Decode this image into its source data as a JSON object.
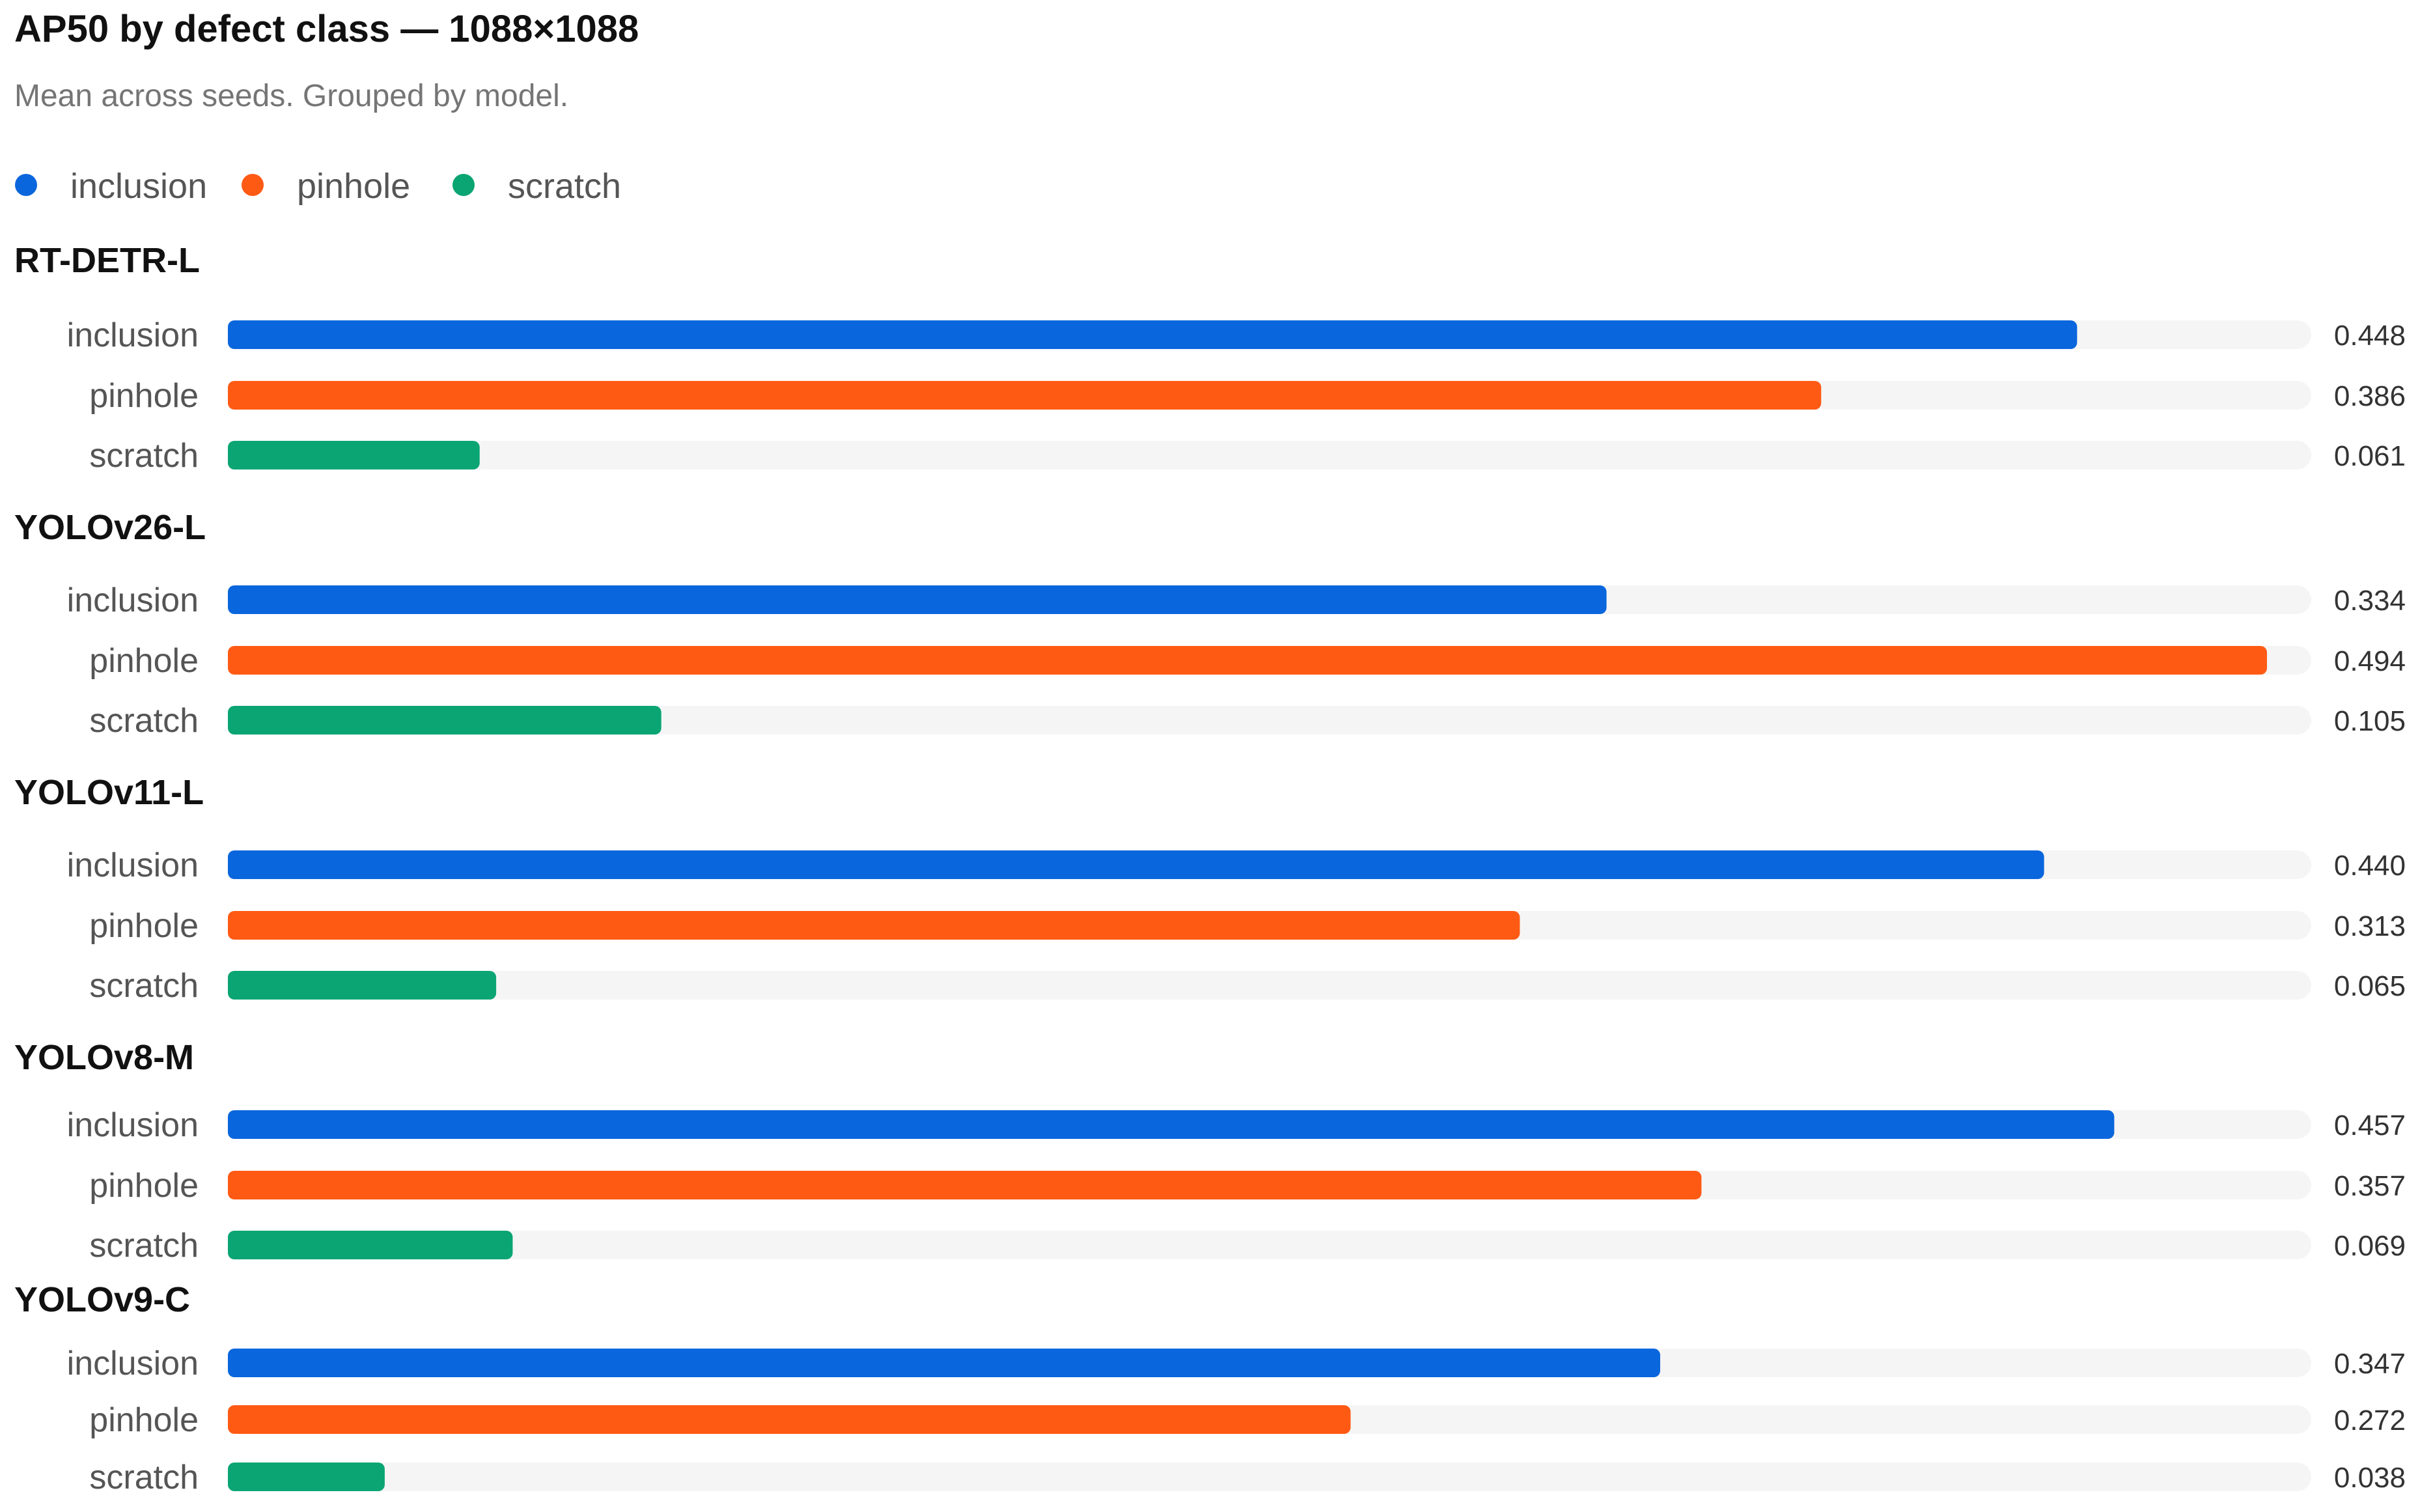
{
  "chart_data": {
    "type": "bar",
    "orientation": "horizontal",
    "title": "AP50 by defect class — 1088×1088",
    "subtitle": "Mean across seeds. Grouped by model.",
    "xlim": [
      0,
      0.5
    ],
    "grid": false,
    "legend_position": "top-left",
    "categories": [
      "inclusion",
      "pinhole",
      "scratch"
    ],
    "colors": {
      "inclusion": "#0a66dc",
      "pinhole": "#ff5a14",
      "scratch": "#0aa573",
      "track": "#f5f5f5",
      "title": "#111111",
      "subtitle": "#757575",
      "label": "#555555",
      "value": "#333333"
    },
    "legend": [
      {
        "name": "inclusion",
        "color": "#0a66dc"
      },
      {
        "name": "pinhole",
        "color": "#ff5a14"
      },
      {
        "name": "scratch",
        "color": "#0aa573"
      }
    ],
    "groups": [
      {
        "model": "RT-DETR-L",
        "values": [
          0.448,
          0.386,
          0.061
        ],
        "value_labels": [
          "0.448",
          "0.386",
          "0.061"
        ]
      },
      {
        "model": "YOLOv26-L",
        "values": [
          0.334,
          0.494,
          0.105
        ],
        "value_labels": [
          "0.334",
          "0.494",
          "0.105"
        ]
      },
      {
        "model": "YOLOv11-L",
        "values": [
          0.44,
          0.313,
          0.065
        ],
        "value_labels": [
          "0.440",
          "0.313",
          "0.065"
        ]
      },
      {
        "model": "YOLOv8-M",
        "values": [
          0.457,
          0.357,
          0.069
        ],
        "value_labels": [
          "0.457",
          "0.357",
          "0.069"
        ]
      },
      {
        "model": "YOLOv9-C",
        "values": [
          0.347,
          0.272,
          0.038
        ],
        "value_labels": [
          "0.347",
          "0.272",
          "0.038"
        ]
      }
    ]
  }
}
